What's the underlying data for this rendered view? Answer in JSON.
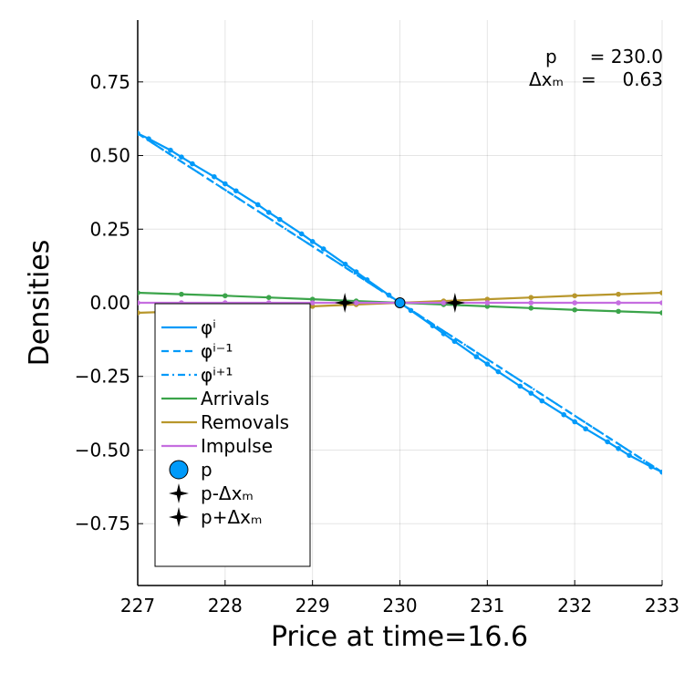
{
  "chart_data": {
    "type": "line",
    "xlabel": "Price at time=16.6",
    "ylabel": "Densities",
    "xlim": [
      227,
      233
    ],
    "ylim": [
      -0.96,
      0.96
    ],
    "xticks": [
      227,
      228,
      229,
      230,
      231,
      232,
      233
    ],
    "xtick_labels": [
      "227",
      "228",
      "229",
      "230",
      "231",
      "232",
      "233"
    ],
    "yticks": [
      -0.75,
      -0.5,
      -0.25,
      0.0,
      0.25,
      0.5,
      0.75
    ],
    "ytick_labels": [
      "−0.75",
      "−0.50",
      "−0.25",
      "0.00",
      "0.25",
      "0.50",
      "0.75"
    ],
    "grid": true,
    "legend_position": "bottom-left",
    "annotation": {
      "line1_label": "p",
      "line1_eq": "= 230.0",
      "line2_label": "Δxₘ",
      "line2_eq": "=",
      "line2_value": "0.63"
    },
    "series": [
      {
        "name": "φⁱ",
        "color": "#009af9",
        "style": "solid",
        "x": [
          227.0,
          227.125,
          227.375,
          227.5,
          227.625,
          227.875,
          228.0,
          228.125,
          228.375,
          228.5,
          228.625,
          228.875,
          229.0,
          229.125,
          229.375,
          229.5,
          229.625,
          229.875,
          230.0,
          230.125,
          230.375,
          230.5,
          230.625,
          230.875,
          231.0,
          231.125,
          231.375,
          231.5,
          231.625,
          231.875,
          232.0,
          232.125,
          232.375,
          232.5,
          232.625,
          232.875,
          233.0
        ],
        "y": [
          0.575,
          0.557,
          0.518,
          0.495,
          0.472,
          0.428,
          0.404,
          0.38,
          0.333,
          0.307,
          0.283,
          0.234,
          0.208,
          0.183,
          0.131,
          0.105,
          0.078,
          0.026,
          0.0,
          -0.026,
          -0.078,
          -0.105,
          -0.131,
          -0.183,
          -0.208,
          -0.234,
          -0.283,
          -0.307,
          -0.333,
          -0.38,
          -0.404,
          -0.428,
          -0.472,
          -0.495,
          -0.518,
          -0.557,
          -0.575
        ]
      },
      {
        "name": "φⁱ⁻¹",
        "color": "#009af9",
        "style": "dash",
        "x": [
          227,
          233
        ],
        "y": [
          0.575,
          -0.575
        ]
      },
      {
        "name": "φⁱ⁺¹",
        "color": "#009af9",
        "style": "dashdot",
        "x": [
          227,
          233
        ],
        "y": [
          0.575,
          -0.575
        ]
      },
      {
        "name": "Arrivals",
        "color": "#3ba44a",
        "style": "solid",
        "x": [
          227.0,
          227.5,
          228.0,
          228.5,
          229.0,
          229.5,
          230.0,
          230.5,
          231.0,
          231.5,
          232.0,
          232.5,
          233.0
        ],
        "y": [
          0.034,
          0.029,
          0.024,
          0.018,
          0.012,
          0.006,
          0.0,
          -0.006,
          -0.012,
          -0.018,
          -0.024,
          -0.029,
          -0.034
        ]
      },
      {
        "name": "Removals",
        "color": "#b8972c",
        "style": "solid",
        "x": [
          227.0,
          227.5,
          228.0,
          228.5,
          229.0,
          229.5,
          230.0,
          230.5,
          231.0,
          231.5,
          232.0,
          232.5,
          233.0
        ],
        "y": [
          -0.034,
          -0.029,
          -0.024,
          -0.018,
          -0.012,
          -0.006,
          0.0,
          0.006,
          0.012,
          0.018,
          0.024,
          0.029,
          0.034
        ]
      },
      {
        "name": "Impulse",
        "color": "#c56ee0",
        "style": "solid",
        "x": [
          227.0,
          227.5,
          228.0,
          228.5,
          229.0,
          229.5,
          230.0,
          230.5,
          231.0,
          231.5,
          232.0,
          232.5,
          233.0
        ],
        "y": [
          0,
          0,
          0,
          0,
          0,
          0,
          0,
          0,
          0,
          0,
          0,
          0,
          0
        ]
      }
    ],
    "points": [
      {
        "name": "p",
        "x": 230.0,
        "y": 0.0,
        "marker": "circle",
        "color": "#009af9"
      },
      {
        "name": "p-Δxₘ",
        "x": 229.37,
        "y": 0.0,
        "marker": "star4",
        "color": "#000000"
      },
      {
        "name": "p+Δxₘ",
        "x": 230.63,
        "y": 0.0,
        "marker": "star4",
        "color": "#000000"
      }
    ]
  }
}
